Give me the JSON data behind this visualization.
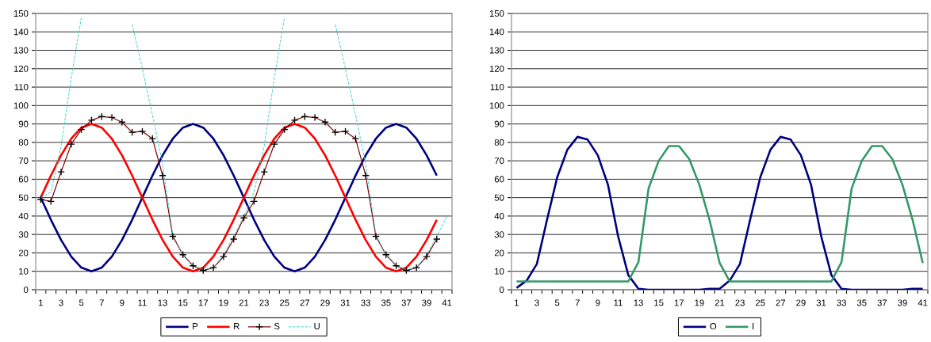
{
  "chart_data": [
    {
      "type": "line",
      "categories": [
        "1",
        null,
        "3",
        null,
        "5",
        null,
        "7",
        null,
        "9",
        null,
        "11",
        null,
        "13",
        null,
        "15",
        null,
        "17",
        null,
        "19",
        null,
        "21",
        null,
        "23",
        null,
        "25",
        null,
        "27",
        null,
        "29",
        null,
        "31",
        null,
        "33",
        null,
        "35",
        null,
        "37",
        null,
        "39",
        null,
        "41"
      ],
      "series": [
        {
          "name": "P",
          "color": "#000080",
          "values": [
            50,
            38,
            27,
            18,
            12,
            10,
            12,
            18,
            27,
            38,
            50,
            62,
            73,
            82,
            88,
            90,
            88,
            82,
            73,
            62,
            50,
            38,
            27,
            18,
            12,
            10,
            12,
            18,
            27,
            38,
            50,
            62,
            73,
            82,
            88,
            90,
            88,
            82,
            73,
            62,
            null
          ]
        },
        {
          "name": "R",
          "color": "#ff0000",
          "values": [
            50,
            62,
            73,
            82,
            88,
            90,
            88,
            82,
            73,
            62,
            50,
            38,
            27,
            18,
            12,
            10,
            12,
            18,
            27,
            38,
            50,
            62,
            73,
            82,
            88,
            90,
            88,
            82,
            73,
            62,
            50,
            38,
            27,
            18,
            12,
            10,
            12,
            18,
            27,
            38,
            null
          ]
        },
        {
          "name": "S",
          "color": "#800000",
          "marker": "cross",
          "values": [
            49,
            48,
            64,
            79,
            87,
            92,
            94,
            93.5,
            91,
            85.5,
            86,
            82,
            62,
            29,
            19,
            13,
            10.5,
            12,
            18,
            27.5,
            39,
            48,
            64,
            79,
            87,
            92,
            94,
            93.5,
            91,
            85.5,
            86,
            82,
            62,
            29,
            19,
            13,
            10.5,
            12,
            18,
            27.5,
            null
          ]
        },
        {
          "name": "U",
          "color": "#33cccc",
          "line_style": "dashed",
          "values": [
            50,
            53,
            78,
            115,
            148,
            null,
            null,
            null,
            null,
            144,
            120,
            95,
            68,
            30,
            19,
            13,
            11,
            12,
            19,
            29,
            40,
            53,
            78,
            115,
            148,
            null,
            null,
            null,
            null,
            144,
            120,
            95,
            68,
            30,
            19,
            13,
            11,
            12,
            19,
            29,
            40
          ]
        }
      ],
      "ylim": [
        0,
        150
      ],
      "yticks": [
        0,
        10,
        20,
        30,
        40,
        50,
        60,
        70,
        80,
        90,
        100,
        110,
        120,
        130,
        140,
        150
      ],
      "grid": "y",
      "legend": "bottom"
    },
    {
      "type": "line",
      "categories": [
        "1",
        null,
        "3",
        null,
        "5",
        null,
        "7",
        null,
        "9",
        null,
        "11",
        null,
        "13",
        null,
        "15",
        null,
        "17",
        null,
        "19",
        null,
        "21",
        null,
        "23",
        null,
        "25",
        null,
        "27",
        null,
        "29",
        null,
        "31",
        null,
        "33",
        null,
        "35",
        null,
        "37",
        null,
        "39",
        null,
        "41"
      ],
      "series": [
        {
          "name": "O",
          "color": "#000080",
          "values": [
            1,
            5,
            14,
            38,
            61,
            76,
            83,
            81.5,
            73,
            57,
            29,
            8,
            0.5,
            0,
            0,
            0,
            0,
            0,
            0,
            0.5,
            0.5,
            5,
            14,
            38,
            61,
            76,
            83,
            81.5,
            73,
            57,
            29,
            8,
            0.5,
            0,
            0,
            0,
            0,
            0,
            0,
            0.5,
            0.5
          ]
        },
        {
          "name": "I",
          "color": "#339966",
          "values": [
            4.5,
            4.5,
            4.5,
            4.5,
            4.5,
            4.5,
            4.5,
            4.5,
            4.5,
            4.5,
            4.5,
            4.5,
            15,
            55,
            70,
            78,
            78,
            71,
            57,
            38,
            14.5,
            4.5,
            4.5,
            4.5,
            4.5,
            4.5,
            4.5,
            4.5,
            4.5,
            4.5,
            4.5,
            4.5,
            15,
            55,
            70,
            78,
            78,
            71,
            57,
            38,
            14.5
          ]
        }
      ],
      "ylim": [
        0,
        150
      ],
      "yticks": [
        0,
        10,
        20,
        30,
        40,
        50,
        60,
        70,
        80,
        90,
        100,
        110,
        120,
        130,
        140,
        150
      ],
      "grid": "y",
      "legend": "bottom"
    }
  ]
}
